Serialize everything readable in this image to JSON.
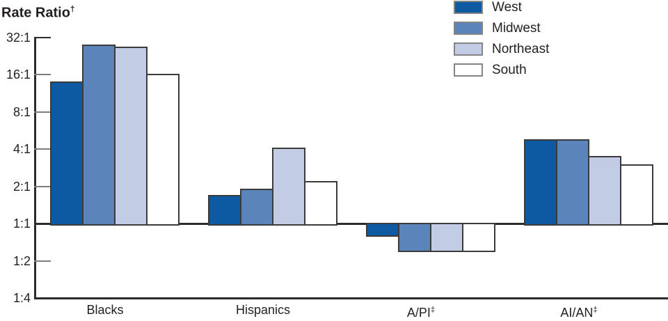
{
  "title": {
    "text": "Rate Ratio",
    "superscript": "†"
  },
  "legend": {
    "items": [
      {
        "label": "West",
        "color": "#0D59A2"
      },
      {
        "label": "Midwest",
        "color": "#5B84BA"
      },
      {
        "label": "Northeast",
        "color": "#C2CCE4"
      },
      {
        "label": "South",
        "color": "#FFFFFF"
      }
    ]
  },
  "chart_data": {
    "type": "bar",
    "scale": "log2",
    "title": "Rate Ratio†",
    "xlabel": "",
    "ylabel": "Rate Ratio†",
    "grid": false,
    "legend_position": "top-right",
    "baseline": "1:1",
    "ylim": [
      "1:4",
      "32:1"
    ],
    "categories": [
      {
        "label": "Blacks",
        "superscript": ""
      },
      {
        "label": "Hispanics",
        "superscript": ""
      },
      {
        "label": "A/PI",
        "superscript": "‡"
      },
      {
        "label": "AI/AN",
        "superscript": "‡"
      }
    ],
    "series": [
      {
        "name": "West",
        "color": "#0D59A2",
        "values": [
          14.0,
          1.7,
          0.8,
          4.8
        ]
      },
      {
        "name": "Midwest",
        "color": "#5B84BA",
        "values": [
          28.0,
          1.9,
          0.6,
          4.8
        ]
      },
      {
        "name": "Northeast",
        "color": "#C2CCE4",
        "values": [
          27.0,
          4.1,
          0.6,
          3.5
        ]
      },
      {
        "name": "South",
        "color": "#FFFFFF",
        "values": [
          16.2,
          2.2,
          0.6,
          3.0
        ]
      }
    ],
    "yticks": [
      {
        "label": "32:1",
        "value": 32
      },
      {
        "label": "16:1",
        "value": 16
      },
      {
        "label": "8:1",
        "value": 8
      },
      {
        "label": "4:1",
        "value": 4
      },
      {
        "label": "2:1",
        "value": 2
      },
      {
        "label": "1:1",
        "value": 1
      },
      {
        "label": "1:2",
        "value": 0.5
      },
      {
        "label": "1:4",
        "value": 0.25
      }
    ]
  },
  "colors": {
    "bar_border": "#3B3B3B",
    "axis": "#2B2B2B",
    "tick": "#7E7E7E",
    "text": "#231F20",
    "legend_swatch_border": "#848484"
  }
}
